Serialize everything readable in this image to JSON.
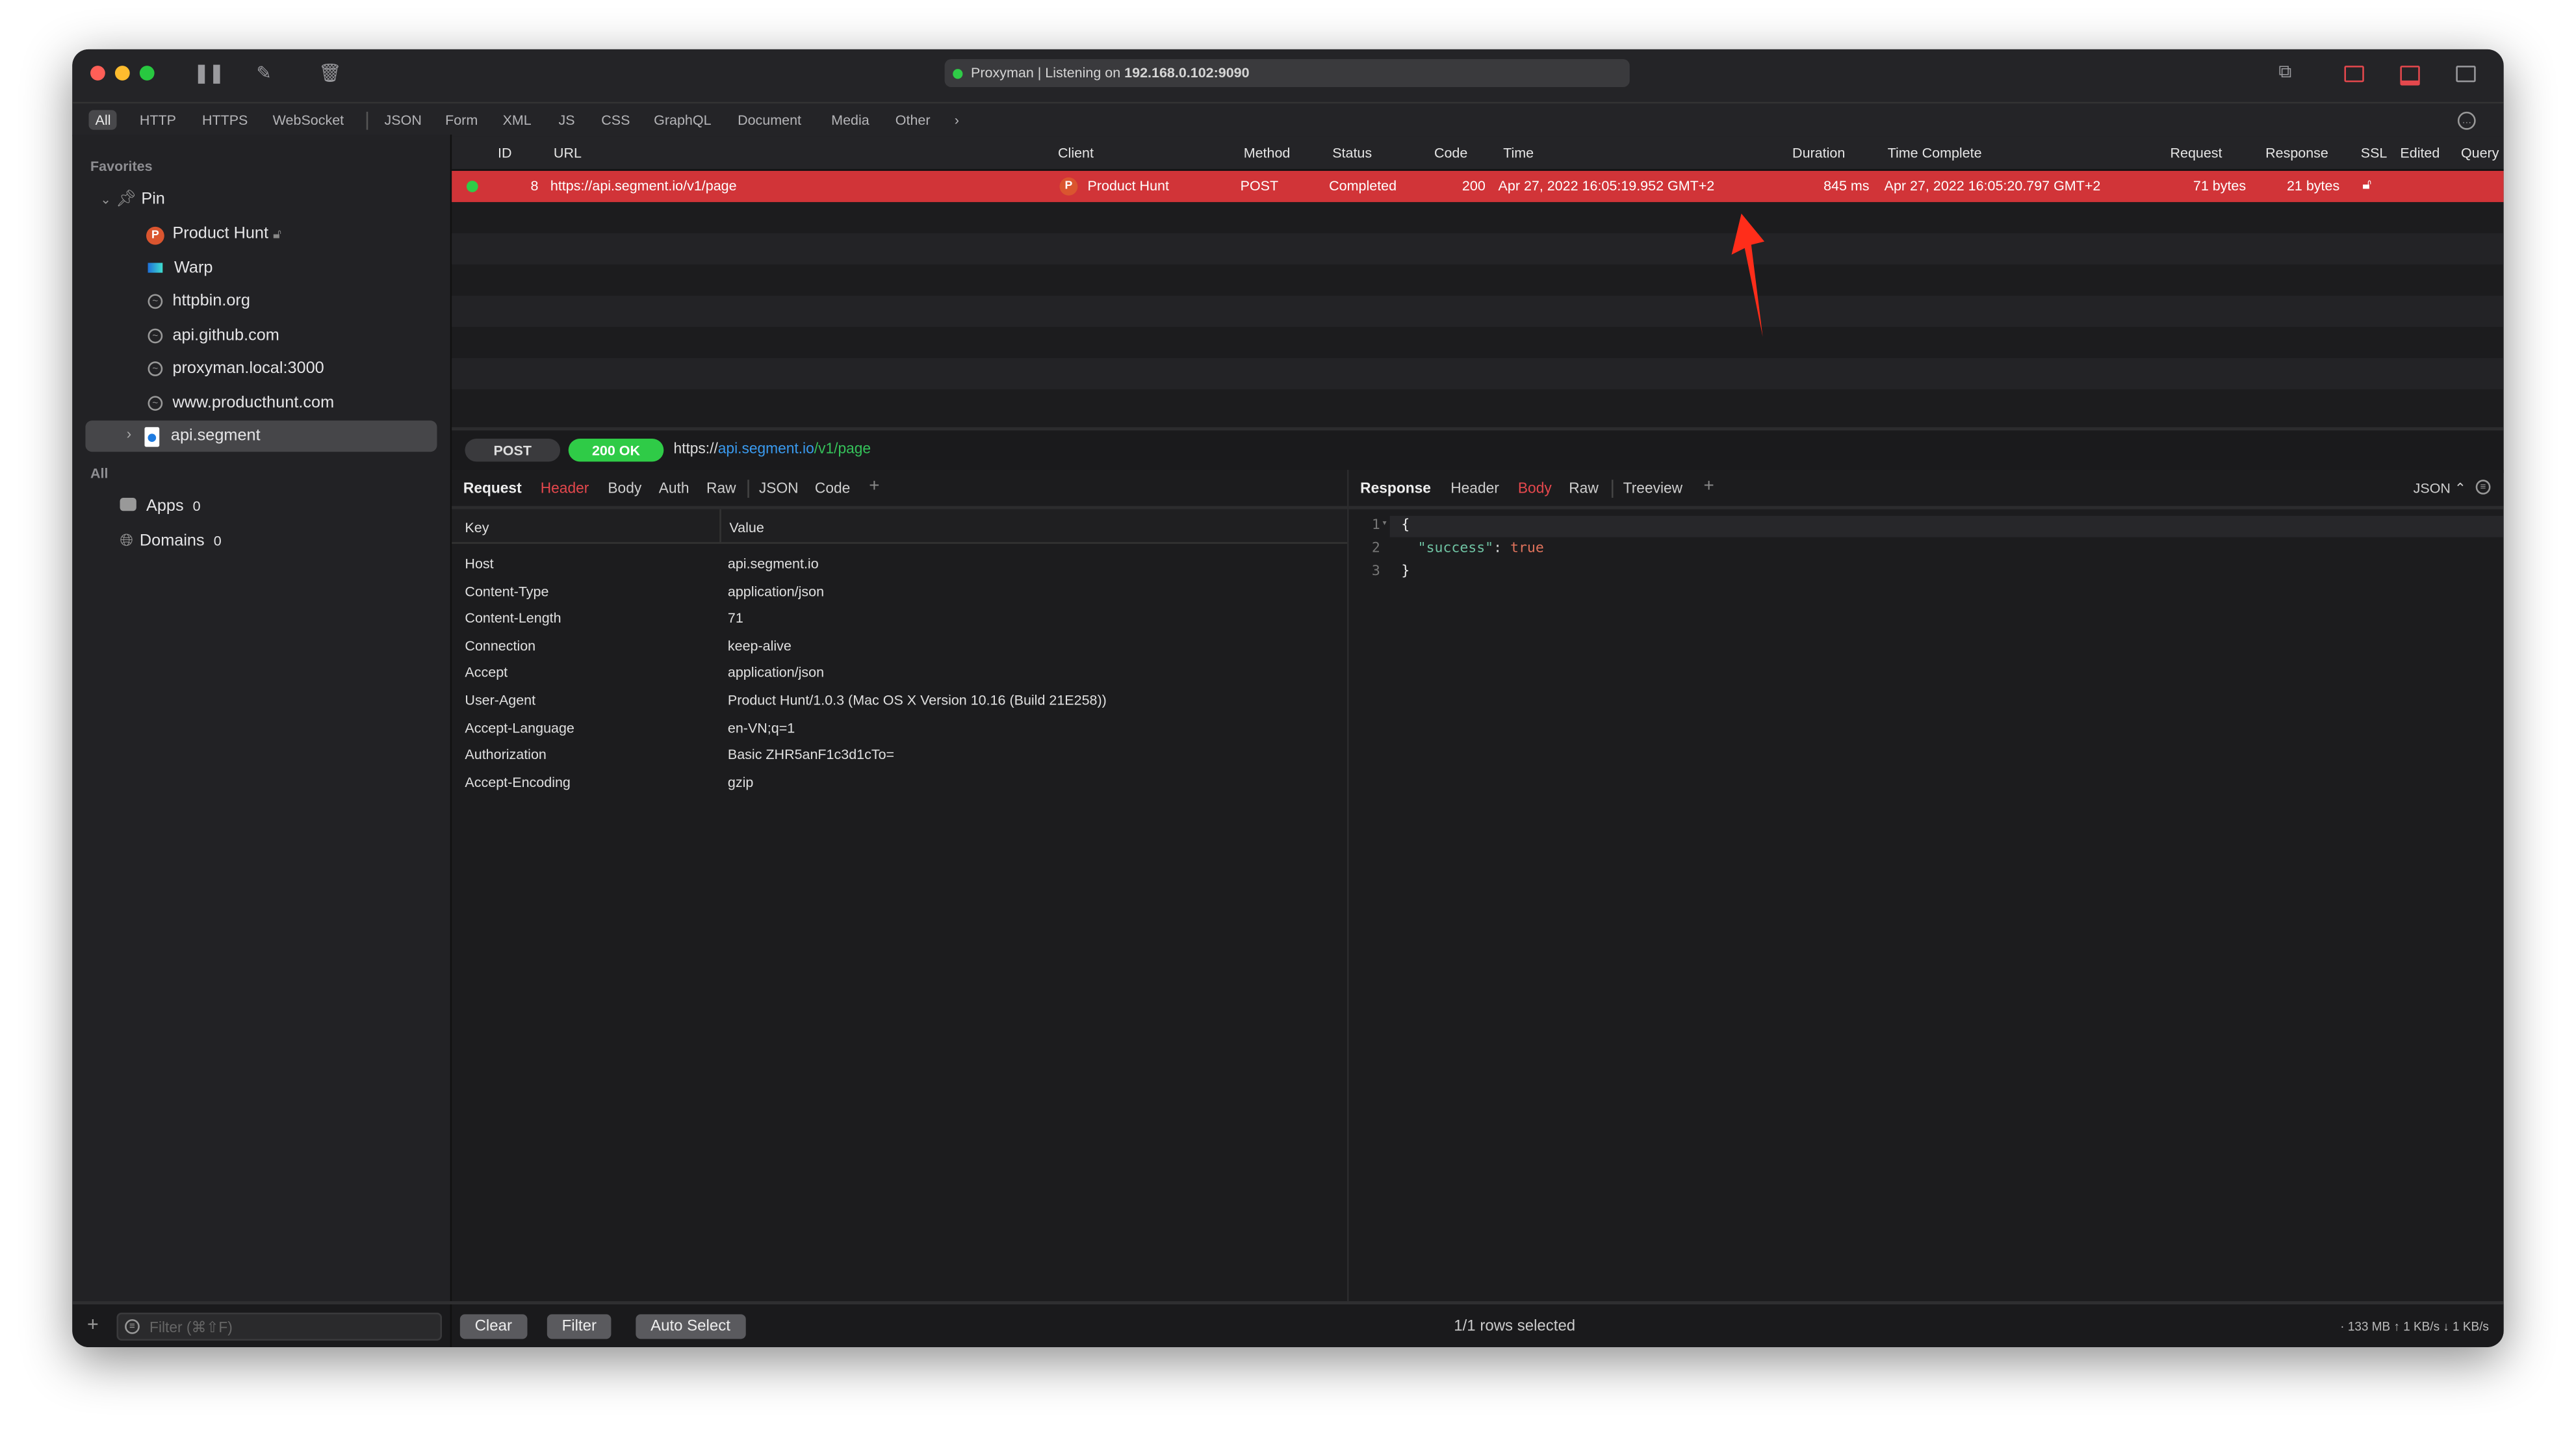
{
  "window": {
    "status_text": "Proxyman | Listening on ",
    "status_ip": "192.168.0.102:9090"
  },
  "filter_tabs": [
    "All",
    "HTTP",
    "HTTPS",
    "WebSocket",
    "JSON",
    "Form",
    "XML",
    "JS",
    "CSS",
    "GraphQL",
    "Document",
    "Media",
    "Other"
  ],
  "filter_more": "›",
  "sidebar": {
    "favorites_label": "Favorites",
    "pin_label": "Pin",
    "pinned": [
      {
        "label": "Product Hunt",
        "icon": "product-hunt-icon"
      },
      {
        "label": "Warp",
        "icon": "warp-icon"
      },
      {
        "label": "httpbin.org",
        "icon": "globe-icon"
      },
      {
        "label": "api.github.com",
        "icon": "globe-icon"
      },
      {
        "label": "proxyman.local:3000",
        "icon": "globe-icon"
      },
      {
        "label": "www.producthunt.com",
        "icon": "globe-icon"
      }
    ],
    "selected_item": "api.segment",
    "all_label": "All",
    "apps_label": "Apps",
    "apps_count": "0",
    "domains_label": "Domains",
    "domains_count": "0",
    "filter_placeholder": "Filter (⌘⇧F)"
  },
  "table": {
    "columns": [
      "ID",
      "URL",
      "Client",
      "Method",
      "Status",
      "Code",
      "Time",
      "Duration",
      "Time Complete",
      "Request",
      "Response",
      "SSL",
      "Edited",
      "Query"
    ],
    "rows": [
      {
        "id": "8",
        "url": "https://api.segment.io/v1/page",
        "client": "Product Hunt",
        "method": "POST",
        "status": "Completed",
        "code": "200",
        "time": "Apr 27, 2022 16:05:19.952 GMT+2",
        "duration": "845 ms",
        "time_complete": "Apr 27, 2022 16:05:20.797 GMT+2",
        "request": "71 bytes",
        "response": "21 bytes",
        "ssl": "unlocked"
      }
    ]
  },
  "detail": {
    "method": "POST",
    "status": "200 OK",
    "url_scheme": "https://",
    "url_host": "api.segment.io",
    "url_path": "/v1/page"
  },
  "request": {
    "title": "Request",
    "tabs": [
      "Header",
      "Body",
      "Auth",
      "Raw",
      "JSON",
      "Code"
    ],
    "active_tab": "Header",
    "col_key": "Key",
    "col_value": "Value",
    "headers": [
      [
        "Host",
        "api.segment.io"
      ],
      [
        "Content-Type",
        "application/json"
      ],
      [
        "Content-Length",
        "71"
      ],
      [
        "Connection",
        "keep-alive"
      ],
      [
        "Accept",
        "application/json"
      ],
      [
        "User-Agent",
        "Product Hunt/1.0.3 (Mac OS X Version 10.16 (Build 21E258))"
      ],
      [
        "Accept-Language",
        "en-VN;q=1"
      ],
      [
        "Authorization",
        "Basic ZHR5anF1c3d1cTo="
      ],
      [
        "Accept-Encoding",
        "gzip"
      ]
    ]
  },
  "response": {
    "title": "Response",
    "tabs": [
      "Header",
      "Body",
      "Raw",
      "Treeview"
    ],
    "active_tab": "Body",
    "format": "JSON ⌃",
    "lines": [
      {
        "n": "1",
        "text": "{"
      },
      {
        "n": "2",
        "key": "\"success\"",
        "sep": ": ",
        "val": "true"
      },
      {
        "n": "3",
        "text": "}"
      }
    ]
  },
  "footer": {
    "clear": "Clear",
    "filter": "Filter",
    "auto_select": "Auto Select",
    "selection": "1/1 rows selected",
    "stats": "· 133 MB ↑ 1 KB/s ↓ 1 KB/s"
  },
  "colors": {
    "accent": "#d13438",
    "ok": "#2fcb47",
    "host": "#3a9bf0",
    "path": "#35c25a",
    "json_key": "#6fc3a3",
    "json_bool": "#e0735c"
  }
}
